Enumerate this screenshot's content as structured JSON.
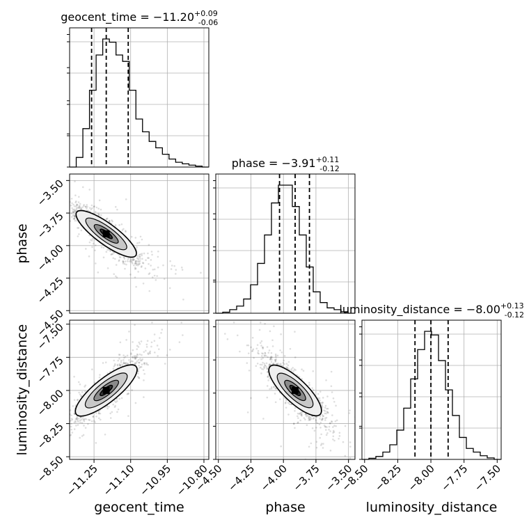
{
  "chart_data": {
    "type": "corner",
    "parameters": [
      {
        "name": "geocent_time",
        "median": "-11.20",
        "plus": "+0.09",
        "minus": "-0.06"
      },
      {
        "name": "phase",
        "median": "-3.91",
        "plus": "+0.11",
        "minus": "-0.12"
      },
      {
        "name": "luminosity_distance",
        "median": "-8.00",
        "plus": "+0.13",
        "minus": "-0.12"
      }
    ],
    "titles": {
      "geocent_time": "geocent_time = −11.20",
      "phase": "phase = −3.91",
      "luminosity_distance": "luminosity_distance = −8.00"
    },
    "axes": {
      "geocent_time": {
        "range": [
          -11.35,
          -10.78
        ],
        "ticks": [
          -11.25,
          -11.1,
          -10.95,
          -10.8
        ],
        "tick_labels": [
          "−11.25",
          "−11.10",
          "−10.95",
          "−10.80"
        ]
      },
      "phase": {
        "range": [
          -4.52,
          -3.45
        ],
        "ticks": [
          -4.5,
          -4.25,
          -4.0,
          -3.75,
          -3.5
        ],
        "tick_labels": [
          "−4.50",
          "−4.25",
          "−4.00",
          "−3.75",
          "−3.50"
        ]
      },
      "luminosity_distance": {
        "range": [
          -8.52,
          -7.47
        ],
        "ticks": [
          -8.5,
          -8.25,
          -8.0,
          -7.75,
          -7.5
        ],
        "tick_labels": [
          "−8.50",
          "−8.25",
          "−8.00",
          "−7.75",
          "−7.50"
        ]
      }
    },
    "quantile_lines": {
      "geocent_time": [
        -11.26,
        -11.2,
        -11.11
      ],
      "phase": [
        -4.03,
        -3.91,
        -3.8
      ],
      "luminosity_distance": [
        -8.12,
        -8.0,
        -7.87
      ]
    },
    "histograms": {
      "geocent_time": {
        "bin_edges_range": [
          -11.35,
          -10.78
        ],
        "counts": [
          0,
          3,
          12,
          24,
          35,
          40,
          39,
          35,
          33,
          24,
          15,
          11,
          8,
          6,
          4,
          2.5,
          1.5,
          1,
          0.6,
          0.3,
          0
        ]
      },
      "phase": {
        "bin_edges_range": [
          -4.52,
          -3.45
        ],
        "counts": [
          0,
          0.3,
          1,
          2,
          4,
          8,
          14,
          22,
          31,
          36,
          36,
          30,
          22,
          13,
          6,
          3,
          1.5,
          1,
          0.4,
          0
        ]
      },
      "luminosity_distance": {
        "bin_edges_range": [
          -8.52,
          -7.47
        ],
        "counts": [
          0,
          0.3,
          0.8,
          2,
          4,
          8,
          14,
          22,
          30,
          35,
          34,
          27,
          19,
          12,
          6,
          3,
          2,
          1,
          0.4,
          0
        ]
      }
    },
    "correlations": {
      "phase_vs_geocent_time": -0.9,
      "luminosity_distance_vs_geocent_time": 0.88,
      "luminosity_distance_vs_phase": -0.86
    },
    "grid": true,
    "legend": "none"
  }
}
